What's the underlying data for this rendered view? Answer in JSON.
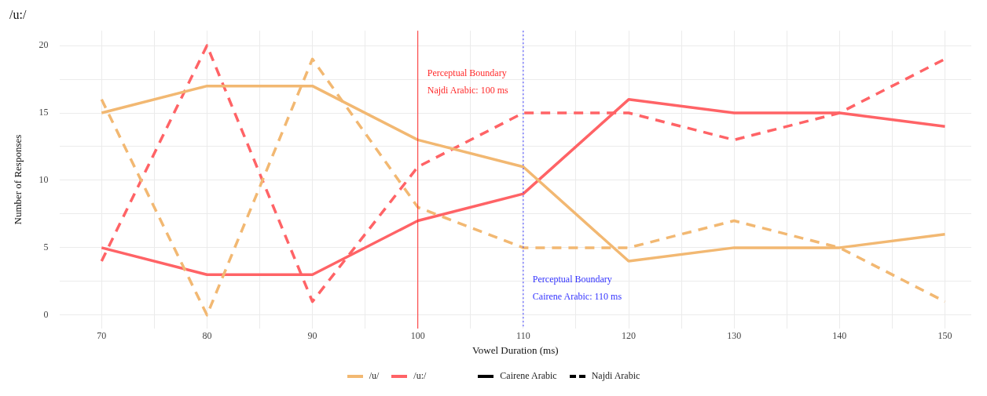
{
  "chart_data": {
    "type": "line",
    "title": "/u:/",
    "xlabel": "Vowel Duration (ms)",
    "ylabel": "Number of Responses",
    "x": [
      70,
      80,
      90,
      100,
      110,
      120,
      130,
      140,
      150
    ],
    "series": [
      {
        "name": "/u/",
        "color": "#f2b872",
        "line_style": "solid",
        "values": [
          15,
          17,
          17,
          13,
          11,
          4,
          5,
          5,
          6
        ]
      },
      {
        "color": "#f2b872",
        "line_style": "dashed",
        "values": [
          16,
          0,
          19,
          8,
          5,
          5,
          7,
          5,
          1
        ]
      },
      {
        "name": "/u:/",
        "color": "#ff6366",
        "line_style": "solid",
        "values": [
          5,
          3,
          3,
          7,
          9,
          16,
          15,
          15,
          14
        ]
      },
      {
        "color": "#ff6366",
        "line_style": "dashed",
        "values": [
          4,
          20,
          1,
          11,
          15,
          15,
          13,
          15,
          19
        ]
      }
    ],
    "xlim": [
      66,
      152.5
    ],
    "ylim": [
      -1,
      21.1
    ],
    "xticks": [
      70,
      {
        "value": 75,
        "label": null
      },
      80,
      {
        "value": 85,
        "label": null
      },
      90,
      {
        "value": 95,
        "label": null
      },
      100,
      {
        "value": 105,
        "label": null
      },
      110,
      {
        "value": 115,
        "label": null
      },
      120,
      {
        "value": 125,
        "label": null
      },
      130,
      {
        "value": 135,
        "label": null
      },
      140,
      {
        "value": 145,
        "label": null
      },
      150
    ],
    "yticks": [
      0,
      {
        "value": 2.5,
        "label": null
      },
      5,
      {
        "value": 7.5,
        "label": null
      },
      10,
      {
        "value": 12.5,
        "label": null
      },
      15,
      {
        "value": 17.5,
        "label": null
      },
      20
    ],
    "ref_lines": [
      {
        "axis": "x",
        "value": 100,
        "label": "Perceptual Boundary\nNajdi Arabic: 100 ms",
        "color": "#ff2a2a",
        "line_style": "solid"
      },
      {
        "axis": "x",
        "value": 110,
        "label": "Perceptual Boundary\nCairene Arabic: 110 ms",
        "color": "#3333ff",
        "line_style": "dotted"
      }
    ],
    "annotations": [
      "Cairene Arabic",
      "Najdi Arabic"
    ],
    "grid": true,
    "legend": "bottom",
    "marker": "none"
  }
}
